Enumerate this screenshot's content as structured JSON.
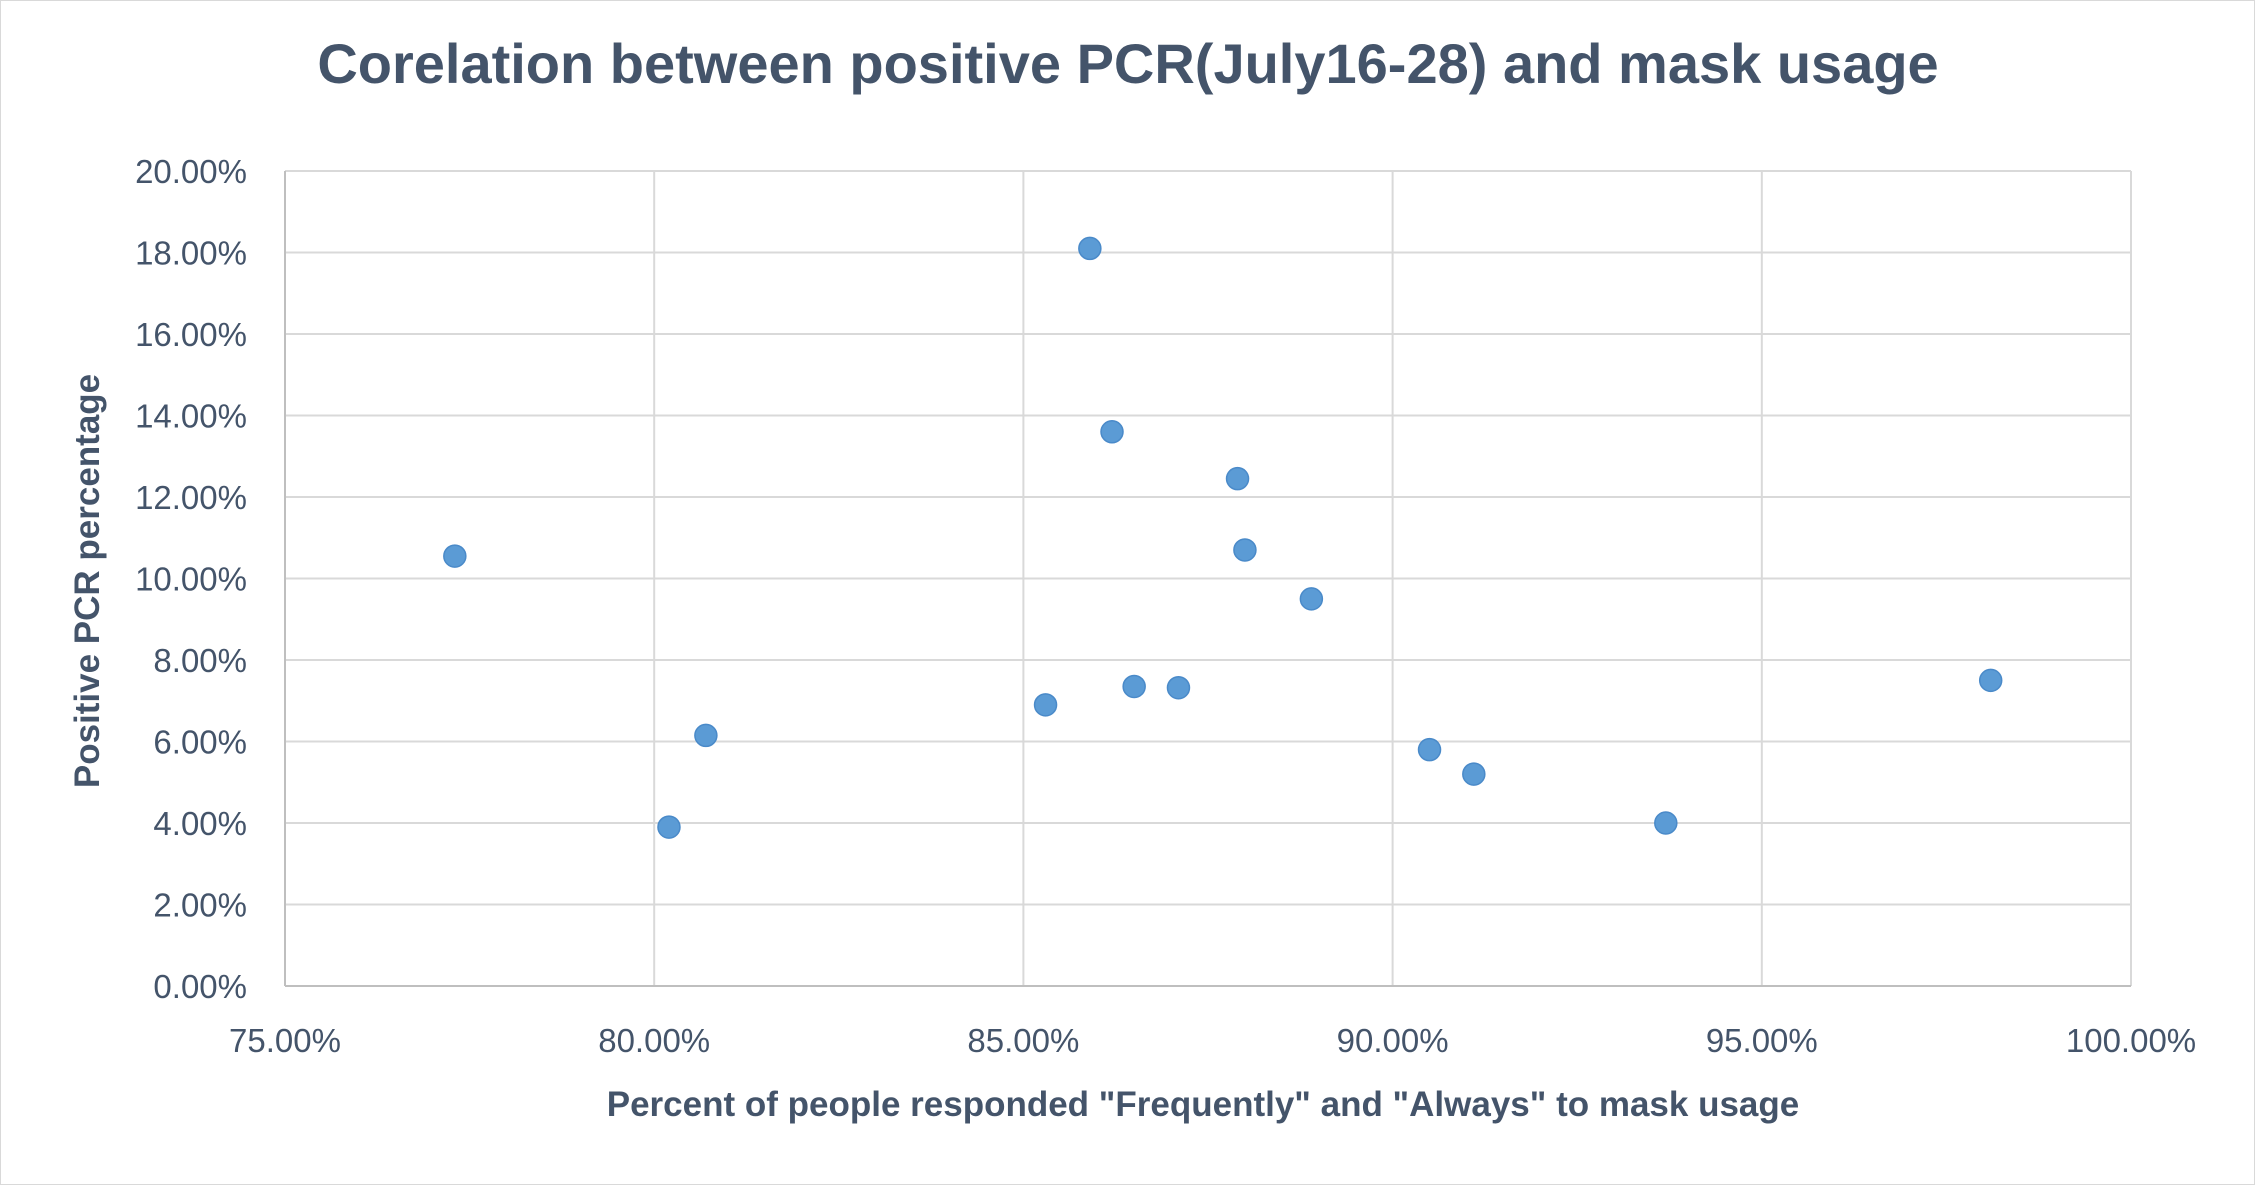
{
  "chart_data": {
    "type": "scatter",
    "title": "Corelation between positive PCR(July16-28) and mask usage",
    "xlabel": "Percent of people  responded \"Frequently\" and \"Always\" to mask usage",
    "ylabel": "Positive PCR percentage",
    "xlim": [
      0.75,
      1.0
    ],
    "ylim": [
      0.0,
      0.2
    ],
    "x_ticks": [
      "75.00%",
      "80.00%",
      "85.00%",
      "90.00%",
      "95.00%",
      "100.00%"
    ],
    "y_ticks": [
      "0.00%",
      "2.00%",
      "4.00%",
      "6.00%",
      "8.00%",
      "10.00%",
      "12.00%",
      "14.00%",
      "16.00%",
      "18.00%",
      "20.00%"
    ],
    "grid": true,
    "legend": "none",
    "colors": {
      "marker": "#5b9bd5",
      "text": "#44546a",
      "grid": "#d9d9d9"
    },
    "points": [
      {
        "x": 0.773,
        "y": 0.1055
      },
      {
        "x": 0.802,
        "y": 0.039
      },
      {
        "x": 0.807,
        "y": 0.0615
      },
      {
        "x": 0.853,
        "y": 0.069
      },
      {
        "x": 0.859,
        "y": 0.181
      },
      {
        "x": 0.862,
        "y": 0.136
      },
      {
        "x": 0.865,
        "y": 0.0735
      },
      {
        "x": 0.871,
        "y": 0.0732
      },
      {
        "x": 0.879,
        "y": 0.1245
      },
      {
        "x": 0.88,
        "y": 0.107
      },
      {
        "x": 0.889,
        "y": 0.095
      },
      {
        "x": 0.905,
        "y": 0.058
      },
      {
        "x": 0.911,
        "y": 0.052
      },
      {
        "x": 0.937,
        "y": 0.04
      },
      {
        "x": 0.981,
        "y": 0.075
      }
    ]
  }
}
